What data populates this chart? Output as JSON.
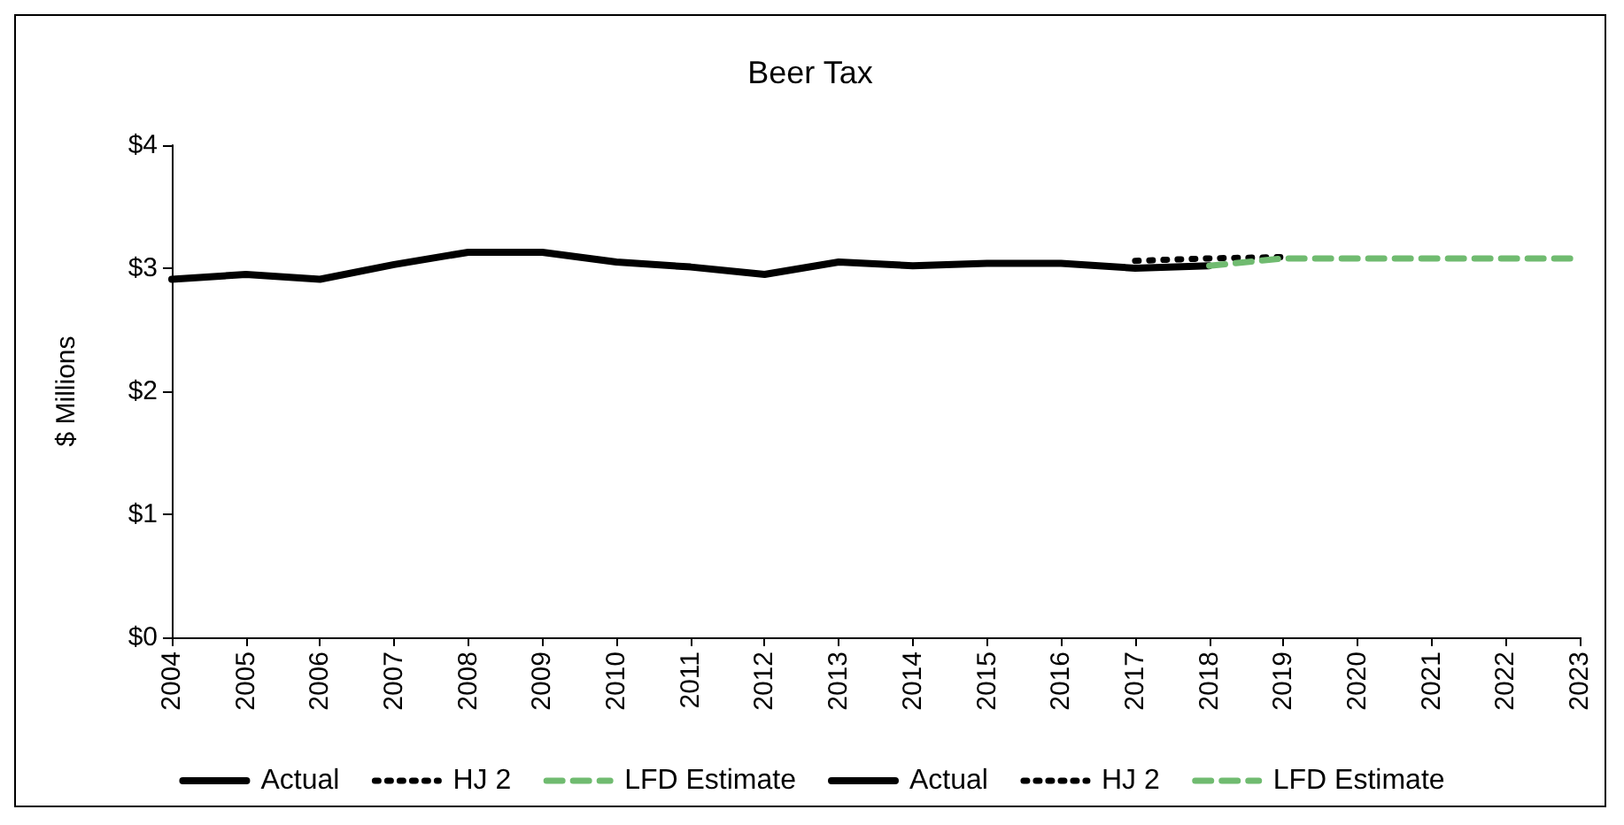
{
  "chart_data": {
    "type": "line",
    "title": "Beer Tax",
    "ylabel": "$ Millions",
    "categories": [
      "2004",
      "2005",
      "2006",
      "2007",
      "2008",
      "2009",
      "2010",
      "2011",
      "2012",
      "2013",
      "2014",
      "2015",
      "2016",
      "2017",
      "2018",
      "2019",
      "2020",
      "2021",
      "2022",
      "2023"
    ],
    "series": [
      {
        "name": "Actual",
        "color": "#000000",
        "line_style": "solid",
        "values": [
          2.91,
          2.95,
          2.91,
          3.03,
          3.13,
          3.13,
          3.05,
          3.01,
          2.95,
          3.05,
          3.02,
          3.04,
          3.04,
          3.0,
          3.02,
          null,
          null,
          null,
          null,
          null
        ]
      },
      {
        "name": "HJ 2",
        "color": "#000000",
        "line_style": "dotted",
        "values": [
          null,
          null,
          null,
          null,
          null,
          null,
          null,
          null,
          null,
          null,
          null,
          null,
          null,
          3.06,
          3.08,
          3.09,
          null,
          null,
          null,
          null
        ]
      },
      {
        "name": "LFD Estimate",
        "color": "#70bb70",
        "line_style": "dashed",
        "values": [
          null,
          null,
          null,
          null,
          null,
          null,
          null,
          null,
          null,
          null,
          null,
          null,
          null,
          null,
          3.02,
          3.08,
          3.08,
          3.08,
          3.08,
          3.08
        ]
      },
      {
        "name": "Actual",
        "color": "#000000",
        "line_style": "solid",
        "values": [
          null,
          null,
          null,
          null,
          null,
          null,
          null,
          null,
          null,
          null,
          null,
          null,
          null,
          null,
          null,
          null,
          null,
          null,
          null,
          null
        ]
      },
      {
        "name": "HJ 2",
        "color": "#000000",
        "line_style": "dotted",
        "values": [
          null,
          null,
          null,
          null,
          null,
          null,
          null,
          null,
          null,
          null,
          null,
          null,
          null,
          null,
          null,
          null,
          null,
          null,
          null,
          null
        ]
      },
      {
        "name": "LFD Estimate",
        "color": "#70bb70",
        "line_style": "dashed",
        "values": [
          null,
          null,
          null,
          null,
          null,
          null,
          null,
          null,
          null,
          null,
          null,
          null,
          null,
          null,
          null,
          null,
          null,
          null,
          null,
          null
        ]
      }
    ],
    "ylim": [
      0,
      4
    ],
    "yticks": [
      {
        "value": 0,
        "label": "$0"
      },
      {
        "value": 1,
        "label": "$1"
      },
      {
        "value": 2,
        "label": "$2"
      },
      {
        "value": 3,
        "label": "$3"
      },
      {
        "value": 4,
        "label": "$4"
      }
    ],
    "grid": false,
    "legend": "bottom",
    "marker": "none"
  }
}
